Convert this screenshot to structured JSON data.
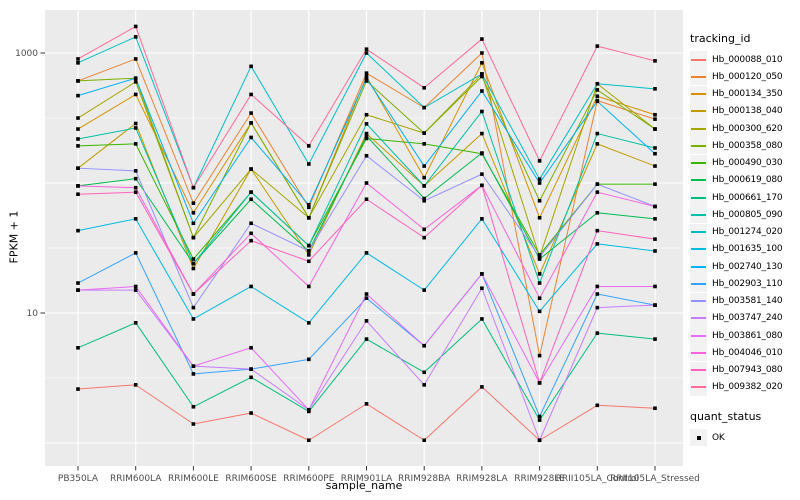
{
  "chart_data": {
    "type": "line",
    "title": "",
    "xlabel": "sample_name",
    "ylabel": "FPKM + 1",
    "y_scale": "log10",
    "ylim": [
      1,
      1600
    ],
    "grid": "on",
    "panel_bg": "#EBEBEB",
    "grid_color": "#FFFFFF",
    "point_color": "#000000",
    "point_shape": "square",
    "axis_text_color": "#4D4D4D",
    "y_ticks": [
      {
        "label": "1000",
        "value": 1000
      },
      {
        "label": "10",
        "value": 10
      }
    ],
    "categories": [
      "PB350LA",
      "RRIM600LA",
      "RRIM600LE",
      "RRIM600SE",
      "RRIM600PE",
      "RRIM901LA",
      "RRIM928BA",
      "RRIM928LA",
      "RRIM928LE",
      "RRII105LA_Control",
      "RRII105LA_Stressed"
    ],
    "legend_position": "right",
    "legend_title": "tracking_id",
    "series": [
      {
        "name": "Hb_000088_010",
        "color": "#F8766D",
        "values": [
          2.6,
          2.8,
          1.4,
          1.7,
          1.05,
          2.0,
          1.05,
          2.7,
          1.05,
          1.95,
          1.85
        ]
      },
      {
        "name": "Hb_000120_050",
        "color": "#EA8331",
        "values": [
          610,
          900,
          70,
          345,
          65,
          700,
          380,
          1000,
          4.7,
          430,
          310
        ]
      },
      {
        "name": "Hb_000134_350",
        "color": "#D89000",
        "values": [
          260,
          480,
          59,
          290,
          54,
          660,
          110,
          840,
          54,
          465,
          335
        ]
      },
      {
        "name": "Hb_000138_040",
        "color": "#C09B00",
        "values": [
          130,
          287,
          22,
          128,
          28,
          240,
          95,
          240,
          20,
          200,
          135
        ]
      },
      {
        "name": "Hb_000300_620",
        "color": "#A3A500",
        "values": [
          316,
          600,
          38,
          128,
          54,
          335,
          242,
          690,
          27,
          580,
          260
        ]
      },
      {
        "name": "Hb_000358_080",
        "color": "#7CAE00",
        "values": [
          610,
          640,
          38,
          290,
          54,
          610,
          242,
          660,
          73,
          520,
          260
        ]
      },
      {
        "name": "Hb_000490_030",
        "color": "#39B600",
        "values": [
          193,
          200,
          26,
          85,
          33,
          220,
          200,
          168,
          28,
          98,
          98
        ]
      },
      {
        "name": "Hb_000619_080",
        "color": "#00BB4E",
        "values": [
          95,
          108,
          24,
          75,
          30,
          230,
          76,
          170,
          26,
          59,
          53
        ]
      },
      {
        "name": "Hb_000661_170",
        "color": "#00BF7D",
        "values": [
          5.4,
          8.4,
          1.9,
          3.2,
          1.75,
          6.3,
          3.5,
          9,
          1.5,
          7.0,
          6.3
        ]
      },
      {
        "name": "Hb_000805_090",
        "color": "#00C1A3",
        "values": [
          218,
          265,
          24,
          85,
          33,
          285,
          95,
          355,
          17,
          240,
          186
        ]
      },
      {
        "name": "Hb_001274_020",
        "color": "#00BFC4",
        "values": [
          840,
          1330,
          92,
          790,
          140,
          1000,
          380,
          690,
          107,
          580,
          530
        ]
      },
      {
        "name": "Hb_001635_100",
        "color": "#00BAE0",
        "values": [
          43,
          53,
          9,
          16,
          8.4,
          29,
          15,
          53,
          10.3,
          34,
          30
        ]
      },
      {
        "name": "Hb_002740_130",
        "color": "#00B0F6",
        "values": [
          470,
          640,
          49,
          224,
          68,
          640,
          135,
          510,
          100,
          425,
          168
        ]
      },
      {
        "name": "Hb_002903_110",
        "color": "#35A2FF",
        "values": [
          17,
          29,
          3.4,
          3.7,
          4.4,
          13,
          5.6,
          20,
          1.6,
          14,
          11.5
        ]
      },
      {
        "name": "Hb_003581_140",
        "color": "#9590FF",
        "values": [
          130,
          124,
          11,
          49,
          30,
          162,
          73,
          117,
          27,
          98,
          66
        ]
      },
      {
        "name": "Hb_003747_240",
        "color": "#C77CFF",
        "values": [
          15,
          15,
          3.9,
          3.7,
          1.8,
          8.7,
          2.8,
          15.5,
          1.05,
          11,
          11.5
        ]
      },
      {
        "name": "Hb_003861_080",
        "color": "#E76BF3",
        "values": [
          15,
          16,
          3.9,
          5.4,
          1.8,
          14,
          5.6,
          20,
          2.9,
          16,
          16
        ]
      },
      {
        "name": "Hb_004046_010",
        "color": "#FA62DB",
        "values": [
          95,
          92,
          14,
          41,
          16,
          100,
          44,
          96,
          13,
          85,
          66
        ]
      },
      {
        "name": "Hb_007943_080",
        "color": "#FF62BC",
        "values": [
          82,
          85,
          14,
          36,
          25,
          75,
          38,
          96,
          2.9,
          43,
          37
        ]
      },
      {
        "name": "Hb_009382_020",
        "color": "#FF6A98",
        "values": [
          900,
          1600,
          92,
          480,
          193,
          1070,
          540,
          1280,
          148,
          1130,
          870
        ]
      }
    ],
    "legend2": {
      "title": "quant_status",
      "items": [
        {
          "label": "OK"
        }
      ]
    }
  }
}
